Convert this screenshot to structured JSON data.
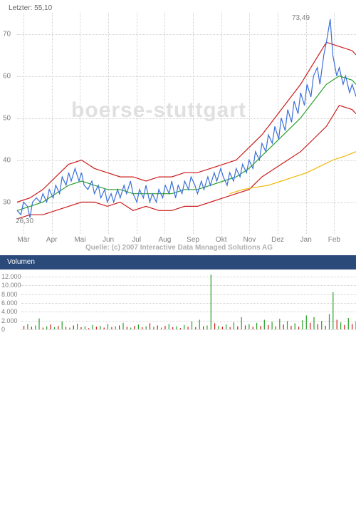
{
  "header": {
    "last_label": "Letzter: 55,10",
    "max_label": "73,49",
    "watermark": "boerse-stuttgart",
    "source": "Quelle: (c) 2007 Interactive Data Managed Solutions AG"
  },
  "price_chart": {
    "type": "line",
    "background_color": "#ffffff",
    "grid_color": "#d0d0d0",
    "ylim": [
      25,
      75
    ],
    "ytick_step": 10,
    "yticks": [
      30,
      40,
      50,
      60,
      70
    ],
    "x_labels": [
      "Mär",
      "Apr",
      "Mai",
      "Jun",
      "Jul",
      "Aug",
      "Sep",
      "Okt",
      "Nov",
      "Dez",
      "Jan",
      "Feb"
    ],
    "x_label_color": "#808080",
    "y_label_color": "#808080",
    "tick_fontsize": 10,
    "watermark_color": "#e0e0e0",
    "watermark_fontsize": 30,
    "low_marker": "26,30",
    "series": {
      "price": {
        "color": "#3a6fd8",
        "width": 1.2,
        "data": [
          [
            0,
            28
          ],
          [
            3,
            27
          ],
          [
            5,
            30
          ],
          [
            8,
            29
          ],
          [
            10,
            26.3
          ],
          [
            12,
            30
          ],
          [
            15,
            31
          ],
          [
            18,
            30
          ],
          [
            20,
            32
          ],
          [
            23,
            30
          ],
          [
            25,
            33
          ],
          [
            28,
            31
          ],
          [
            30,
            34
          ],
          [
            33,
            32
          ],
          [
            35,
            36
          ],
          [
            38,
            34
          ],
          [
            40,
            37
          ],
          [
            42,
            35
          ],
          [
            45,
            38
          ],
          [
            48,
            35
          ],
          [
            50,
            37
          ],
          [
            52,
            34
          ],
          [
            55,
            33
          ],
          [
            58,
            35
          ],
          [
            60,
            32
          ],
          [
            63,
            34
          ],
          [
            65,
            31
          ],
          [
            68,
            33
          ],
          [
            70,
            30
          ],
          [
            73,
            32
          ],
          [
            75,
            30
          ],
          [
            78,
            33
          ],
          [
            80,
            31
          ],
          [
            83,
            34
          ],
          [
            85,
            32
          ],
          [
            88,
            35
          ],
          [
            90,
            32
          ],
          [
            93,
            30
          ],
          [
            95,
            33
          ],
          [
            98,
            31
          ],
          [
            100,
            34
          ],
          [
            103,
            30
          ],
          [
            105,
            32
          ],
          [
            108,
            30
          ],
          [
            110,
            33
          ],
          [
            113,
            31
          ],
          [
            115,
            34
          ],
          [
            118,
            32
          ],
          [
            120,
            35
          ],
          [
            123,
            31
          ],
          [
            125,
            34
          ],
          [
            128,
            32
          ],
          [
            130,
            35
          ],
          [
            133,
            33
          ],
          [
            135,
            36
          ],
          [
            138,
            34
          ],
          [
            140,
            32
          ],
          [
            143,
            35
          ],
          [
            145,
            33
          ],
          [
            148,
            36
          ],
          [
            150,
            34
          ],
          [
            153,
            37
          ],
          [
            155,
            35
          ],
          [
            158,
            38
          ],
          [
            160,
            36
          ],
          [
            163,
            34
          ],
          [
            165,
            37
          ],
          [
            168,
            35
          ],
          [
            170,
            38
          ],
          [
            173,
            36
          ],
          [
            175,
            39
          ],
          [
            178,
            37
          ],
          [
            180,
            40
          ],
          [
            183,
            38
          ],
          [
            185,
            42
          ],
          [
            188,
            40
          ],
          [
            190,
            44
          ],
          [
            193,
            42
          ],
          [
            195,
            46
          ],
          [
            198,
            44
          ],
          [
            200,
            48
          ],
          [
            203,
            45
          ],
          [
            205,
            50
          ],
          [
            208,
            47
          ],
          [
            210,
            52
          ],
          [
            213,
            49
          ],
          [
            215,
            54
          ],
          [
            218,
            51
          ],
          [
            220,
            56
          ],
          [
            223,
            53
          ],
          [
            225,
            58
          ],
          [
            228,
            55
          ],
          [
            230,
            60
          ],
          [
            233,
            62
          ],
          [
            235,
            58
          ],
          [
            238,
            65
          ],
          [
            240,
            68
          ],
          [
            243,
            73.49
          ],
          [
            245,
            65
          ],
          [
            248,
            60
          ],
          [
            250,
            62
          ],
          [
            253,
            58
          ],
          [
            255,
            60
          ],
          [
            258,
            56
          ],
          [
            260,
            58
          ],
          [
            263,
            55.1
          ]
        ]
      },
      "sma_green": {
        "color": "#2aa02a",
        "width": 1.4,
        "data": [
          [
            0,
            28
          ],
          [
            10,
            29
          ],
          [
            20,
            30
          ],
          [
            30,
            32
          ],
          [
            40,
            34
          ],
          [
            50,
            35
          ],
          [
            60,
            34
          ],
          [
            70,
            33
          ],
          [
            80,
            33
          ],
          [
            90,
            32
          ],
          [
            100,
            32
          ],
          [
            110,
            32
          ],
          [
            120,
            32
          ],
          [
            130,
            33
          ],
          [
            140,
            33
          ],
          [
            150,
            34
          ],
          [
            160,
            35
          ],
          [
            170,
            36
          ],
          [
            180,
            38
          ],
          [
            190,
            41
          ],
          [
            200,
            44
          ],
          [
            210,
            47
          ],
          [
            220,
            50
          ],
          [
            230,
            54
          ],
          [
            240,
            58
          ],
          [
            250,
            60
          ],
          [
            260,
            59
          ],
          [
            263,
            58
          ]
        ]
      },
      "boll_upper": {
        "color": "#cc1b1b",
        "width": 1.2,
        "data": [
          [
            0,
            30
          ],
          [
            10,
            31
          ],
          [
            20,
            33
          ],
          [
            30,
            36
          ],
          [
            40,
            39
          ],
          [
            50,
            40
          ],
          [
            60,
            38
          ],
          [
            70,
            37
          ],
          [
            80,
            36
          ],
          [
            90,
            36
          ],
          [
            100,
            35
          ],
          [
            110,
            36
          ],
          [
            120,
            36
          ],
          [
            130,
            37
          ],
          [
            140,
            37
          ],
          [
            150,
            38
          ],
          [
            160,
            39
          ],
          [
            170,
            40
          ],
          [
            180,
            43
          ],
          [
            190,
            46
          ],
          [
            200,
            50
          ],
          [
            210,
            54
          ],
          [
            220,
            58
          ],
          [
            230,
            63
          ],
          [
            240,
            68
          ],
          [
            250,
            67
          ],
          [
            260,
            66
          ],
          [
            263,
            65
          ]
        ]
      },
      "boll_lower": {
        "color": "#cc1b1b",
        "width": 1.2,
        "data": [
          [
            0,
            26
          ],
          [
            10,
            27
          ],
          [
            20,
            27
          ],
          [
            30,
            28
          ],
          [
            40,
            29
          ],
          [
            50,
            30
          ],
          [
            60,
            30
          ],
          [
            70,
            29
          ],
          [
            80,
            30
          ],
          [
            90,
            28
          ],
          [
            100,
            29
          ],
          [
            110,
            28
          ],
          [
            120,
            28
          ],
          [
            130,
            29
          ],
          [
            140,
            29
          ],
          [
            150,
            30
          ],
          [
            160,
            31
          ],
          [
            170,
            32
          ],
          [
            180,
            33
          ],
          [
            190,
            36
          ],
          [
            200,
            38
          ],
          [
            210,
            40
          ],
          [
            220,
            42
          ],
          [
            230,
            45
          ],
          [
            240,
            48
          ],
          [
            250,
            53
          ],
          [
            260,
            52
          ],
          [
            263,
            51
          ]
        ]
      },
      "sma_yellow": {
        "color": "#f2b705",
        "width": 1.4,
        "data": [
          [
            165,
            32
          ],
          [
            175,
            33
          ],
          [
            185,
            33.5
          ],
          [
            195,
            34
          ],
          [
            205,
            35
          ],
          [
            215,
            36
          ],
          [
            225,
            37
          ],
          [
            235,
            38.5
          ],
          [
            245,
            40
          ],
          [
            255,
            41
          ],
          [
            263,
            42
          ]
        ]
      }
    }
  },
  "volume_panel": {
    "header_label": "Volumen",
    "header_bg": "#2a4a7a",
    "header_text_color": "#ffffff",
    "header_fontsize": 10,
    "ylim": [
      0,
      13000
    ],
    "yticks": [
      0,
      2000,
      4000,
      6000,
      8000,
      10000,
      12000
    ],
    "ytick_labels": [
      "0",
      "2.000",
      "4.000",
      "6.000",
      "8.000",
      "10.000",
      "12.000"
    ],
    "grid_color": "#d0d0d0",
    "up_color": "#2aa02a",
    "down_color": "#cc1b1b",
    "bar_width": 1.2,
    "bars": [
      [
        2,
        800,
        "d"
      ],
      [
        5,
        1200,
        "u"
      ],
      [
        8,
        600,
        "d"
      ],
      [
        11,
        900,
        "u"
      ],
      [
        14,
        2500,
        "u"
      ],
      [
        17,
        400,
        "d"
      ],
      [
        20,
        700,
        "u"
      ],
      [
        23,
        1100,
        "d"
      ],
      [
        26,
        500,
        "u"
      ],
      [
        29,
        800,
        "d"
      ],
      [
        32,
        1800,
        "u"
      ],
      [
        35,
        600,
        "d"
      ],
      [
        38,
        400,
        "u"
      ],
      [
        41,
        900,
        "d"
      ],
      [
        44,
        1300,
        "u"
      ],
      [
        47,
        500,
        "d"
      ],
      [
        50,
        700,
        "u"
      ],
      [
        53,
        300,
        "d"
      ],
      [
        56,
        1000,
        "u"
      ],
      [
        59,
        600,
        "d"
      ],
      [
        62,
        800,
        "u"
      ],
      [
        65,
        400,
        "d"
      ],
      [
        68,
        1200,
        "u"
      ],
      [
        71,
        500,
        "d"
      ],
      [
        74,
        700,
        "u"
      ],
      [
        77,
        900,
        "d"
      ],
      [
        80,
        1500,
        "u"
      ],
      [
        83,
        600,
        "d"
      ],
      [
        86,
        400,
        "u"
      ],
      [
        89,
        800,
        "d"
      ],
      [
        92,
        1100,
        "u"
      ],
      [
        95,
        500,
        "d"
      ],
      [
        98,
        700,
        "u"
      ],
      [
        101,
        1400,
        "d"
      ],
      [
        104,
        600,
        "u"
      ],
      [
        107,
        900,
        "d"
      ],
      [
        110,
        400,
        "u"
      ],
      [
        113,
        800,
        "d"
      ],
      [
        116,
        1200,
        "u"
      ],
      [
        119,
        500,
        "d"
      ],
      [
        122,
        700,
        "u"
      ],
      [
        125,
        300,
        "d"
      ],
      [
        128,
        1000,
        "u"
      ],
      [
        131,
        600,
        "d"
      ],
      [
        134,
        1800,
        "u"
      ],
      [
        137,
        500,
        "d"
      ],
      [
        140,
        2200,
        "u"
      ],
      [
        143,
        700,
        "d"
      ],
      [
        146,
        900,
        "u"
      ],
      [
        149,
        12500,
        "u"
      ],
      [
        152,
        1400,
        "d"
      ],
      [
        155,
        800,
        "u"
      ],
      [
        158,
        600,
        "d"
      ],
      [
        161,
        1100,
        "u"
      ],
      [
        164,
        500,
        "d"
      ],
      [
        167,
        1600,
        "u"
      ],
      [
        170,
        700,
        "d"
      ],
      [
        173,
        2800,
        "u"
      ],
      [
        176,
        900,
        "d"
      ],
      [
        179,
        1200,
        "u"
      ],
      [
        182,
        600,
        "d"
      ],
      [
        185,
        1500,
        "u"
      ],
      [
        188,
        800,
        "d"
      ],
      [
        191,
        2200,
        "u"
      ],
      [
        194,
        1000,
        "d"
      ],
      [
        197,
        1700,
        "u"
      ],
      [
        200,
        700,
        "d"
      ],
      [
        203,
        2400,
        "u"
      ],
      [
        206,
        1100,
        "d"
      ],
      [
        209,
        1900,
        "u"
      ],
      [
        212,
        800,
        "d"
      ],
      [
        215,
        1400,
        "u"
      ],
      [
        218,
        600,
        "d"
      ],
      [
        221,
        2100,
        "u"
      ],
      [
        224,
        3200,
        "u"
      ],
      [
        227,
        1500,
        "d"
      ],
      [
        230,
        2800,
        "u"
      ],
      [
        233,
        1200,
        "d"
      ],
      [
        236,
        1900,
        "u"
      ],
      [
        239,
        800,
        "d"
      ],
      [
        242,
        3500,
        "u"
      ],
      [
        245,
        8500,
        "u"
      ],
      [
        248,
        2200,
        "d"
      ],
      [
        251,
        1600,
        "u"
      ],
      [
        254,
        1000,
        "d"
      ],
      [
        257,
        2600,
        "u"
      ],
      [
        260,
        1200,
        "d"
      ],
      [
        263,
        1800,
        "u"
      ]
    ]
  }
}
